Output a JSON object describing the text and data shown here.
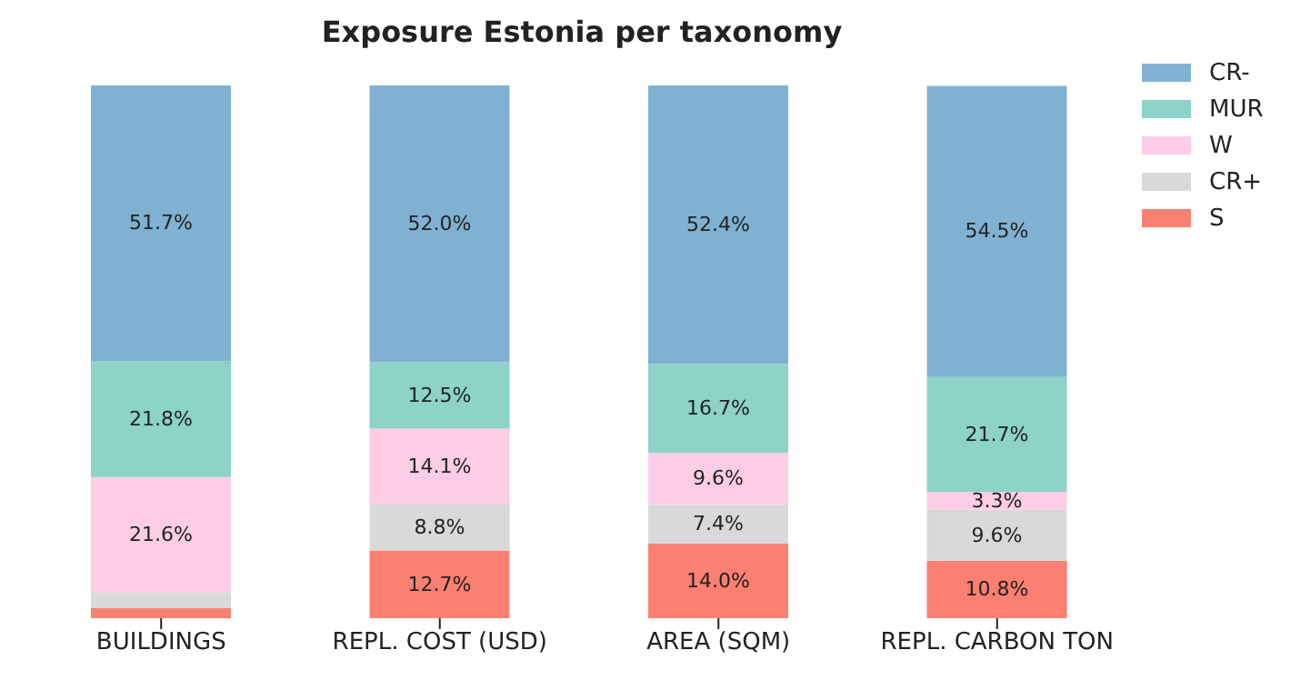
{
  "chart_data": {
    "type": "bar",
    "title": "Exposure Estonia per taxonomy",
    "categories": [
      "BUILDINGS",
      "REPL. COST (USD)",
      "AREA (SQM)",
      "REPL. CARBON TON"
    ],
    "stacked": true,
    "ylim": [
      0,
      100
    ],
    "legend": "top right",
    "grid": false,
    "series": [
      {
        "name": "S",
        "color": "#fb8072",
        "values": [
          1.9,
          12.7,
          14.0,
          10.8
        ],
        "value_labels": [
          null,
          "12.7%",
          "14.0%",
          "10.8%"
        ]
      },
      {
        "name": "CR+",
        "color": "#d9d9d9",
        "values": [
          3.0,
          8.8,
          7.4,
          9.6
        ],
        "value_labels": [
          null,
          "8.8%",
          "7.4%",
          "9.6%"
        ]
      },
      {
        "name": "W",
        "color": "#fccde5",
        "values": [
          21.6,
          14.1,
          9.6,
          3.3
        ],
        "value_labels": [
          "21.6%",
          "14.1%",
          "9.6%",
          "3.3%"
        ]
      },
      {
        "name": "MUR",
        "color": "#8dd3c7",
        "values": [
          21.8,
          12.5,
          16.7,
          21.7
        ],
        "value_labels": [
          "21.8%",
          "12.5%",
          "16.7%",
          "21.7%"
        ]
      },
      {
        "name": "CR-",
        "color": "#80b1d3",
        "values": [
          51.7,
          52.0,
          52.4,
          54.5
        ],
        "value_labels": [
          "51.7%",
          "52.0%",
          "52.4%",
          "54.5%"
        ]
      }
    ]
  }
}
